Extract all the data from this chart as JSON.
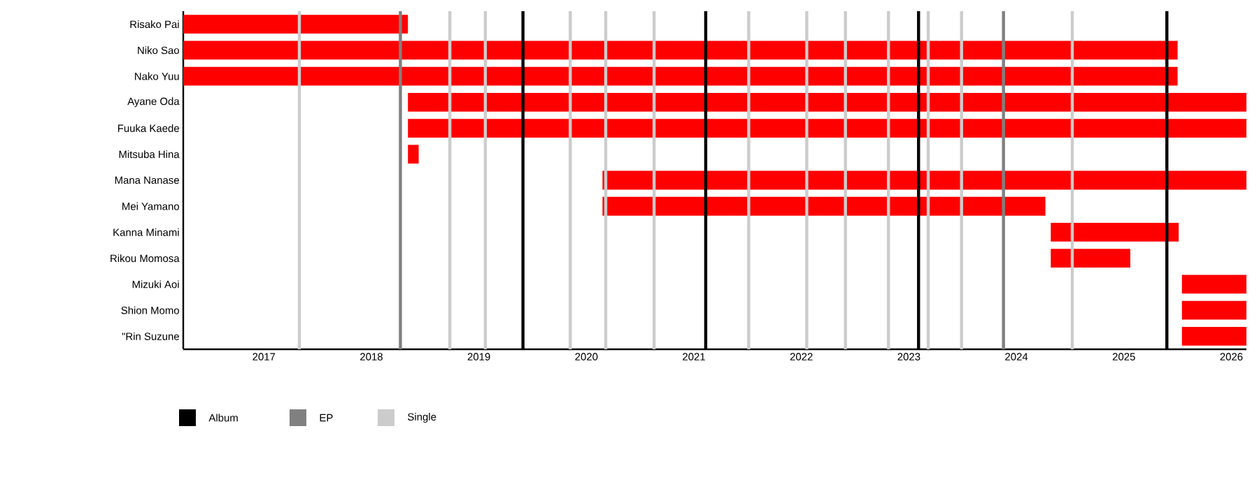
{
  "chart_data": {
    "type": "bar",
    "orientation": "horizontal",
    "categories": [
      "Risako Pai",
      "Niko Sao",
      "Nako Yuu",
      "Ayane Oda",
      "Fuuka Kaede",
      "Mitsuba Hina",
      "Mana Nanase",
      "Mei Yamano",
      "Kanna Minami",
      "Rikou Momosa",
      "Mizuki Aoi",
      "Shion Momo",
      "\"Rin Suzune"
    ],
    "series": [
      {
        "color": "#ff0000",
        "base": [
          2016.25,
          2016.25,
          2016.25,
          2018.34,
          2018.34,
          2018.34,
          2020.15,
          2020.15,
          2024.32,
          2024.32,
          2025.54,
          2025.54,
          2025.54
        ],
        "values": [
          2.09,
          9.25,
          9.25,
          7.8,
          7.8,
          0.1,
          5.99,
          4.12,
          1.19,
          0.74,
          0.6,
          0.6,
          0.6
        ]
      },
      {
        "name": "Album",
        "color": "#000000",
        "values": [
          null,
          null,
          null,
          null,
          null,
          null,
          null,
          null,
          null,
          null,
          null,
          null,
          null
        ]
      },
      {
        "name": "EP",
        "color": "#808080",
        "values": [
          null,
          null,
          null,
          null,
          null,
          null,
          null,
          null,
          null,
          null,
          null,
          null,
          null
        ]
      },
      {
        "name": "Single",
        "color": "#cccccc",
        "values": [
          null,
          null,
          null,
          null,
          null,
          null,
          null,
          null,
          null,
          null,
          null,
          null,
          null
        ]
      }
    ],
    "xlim": [
      2016.25,
      2026.14
    ],
    "xticks": [
      2017,
      2018,
      2019,
      2020,
      2021,
      2022,
      2023,
      2024,
      2025,
      2026
    ],
    "ref_lines": [
      {
        "axis": "x",
        "value": 2019.41,
        "color": "#000000"
      },
      {
        "axis": "x",
        "value": 2021.11,
        "color": "#000000"
      },
      {
        "axis": "x",
        "value": 2023.09,
        "color": "#000000"
      },
      {
        "axis": "x",
        "value": 2025.4,
        "color": "#000000"
      },
      {
        "axis": "x",
        "value": 2018.27,
        "color": "#808080"
      },
      {
        "axis": "x",
        "value": 2023.88,
        "color": "#808080"
      },
      {
        "axis": "x",
        "value": 2017.33,
        "color": "#cccccc"
      },
      {
        "axis": "x",
        "value": 2018.73,
        "color": "#cccccc"
      },
      {
        "axis": "x",
        "value": 2019.06,
        "color": "#cccccc"
      },
      {
        "axis": "x",
        "value": 2019.85,
        "color": "#cccccc"
      },
      {
        "axis": "x",
        "value": 2020.18,
        "color": "#cccccc"
      },
      {
        "axis": "x",
        "value": 2020.63,
        "color": "#cccccc"
      },
      {
        "axis": "x",
        "value": 2021.51,
        "color": "#cccccc"
      },
      {
        "axis": "x",
        "value": 2022.05,
        "color": "#cccccc"
      },
      {
        "axis": "x",
        "value": 2022.41,
        "color": "#cccccc"
      },
      {
        "axis": "x",
        "value": 2022.81,
        "color": "#cccccc"
      },
      {
        "axis": "x",
        "value": 2023.18,
        "color": "#cccccc"
      },
      {
        "axis": "x",
        "value": 2023.49,
        "color": "#cccccc"
      },
      {
        "axis": "x",
        "value": 2024.52,
        "color": "#cccccc"
      }
    ],
    "grid": false,
    "legend": "bottom left"
  }
}
